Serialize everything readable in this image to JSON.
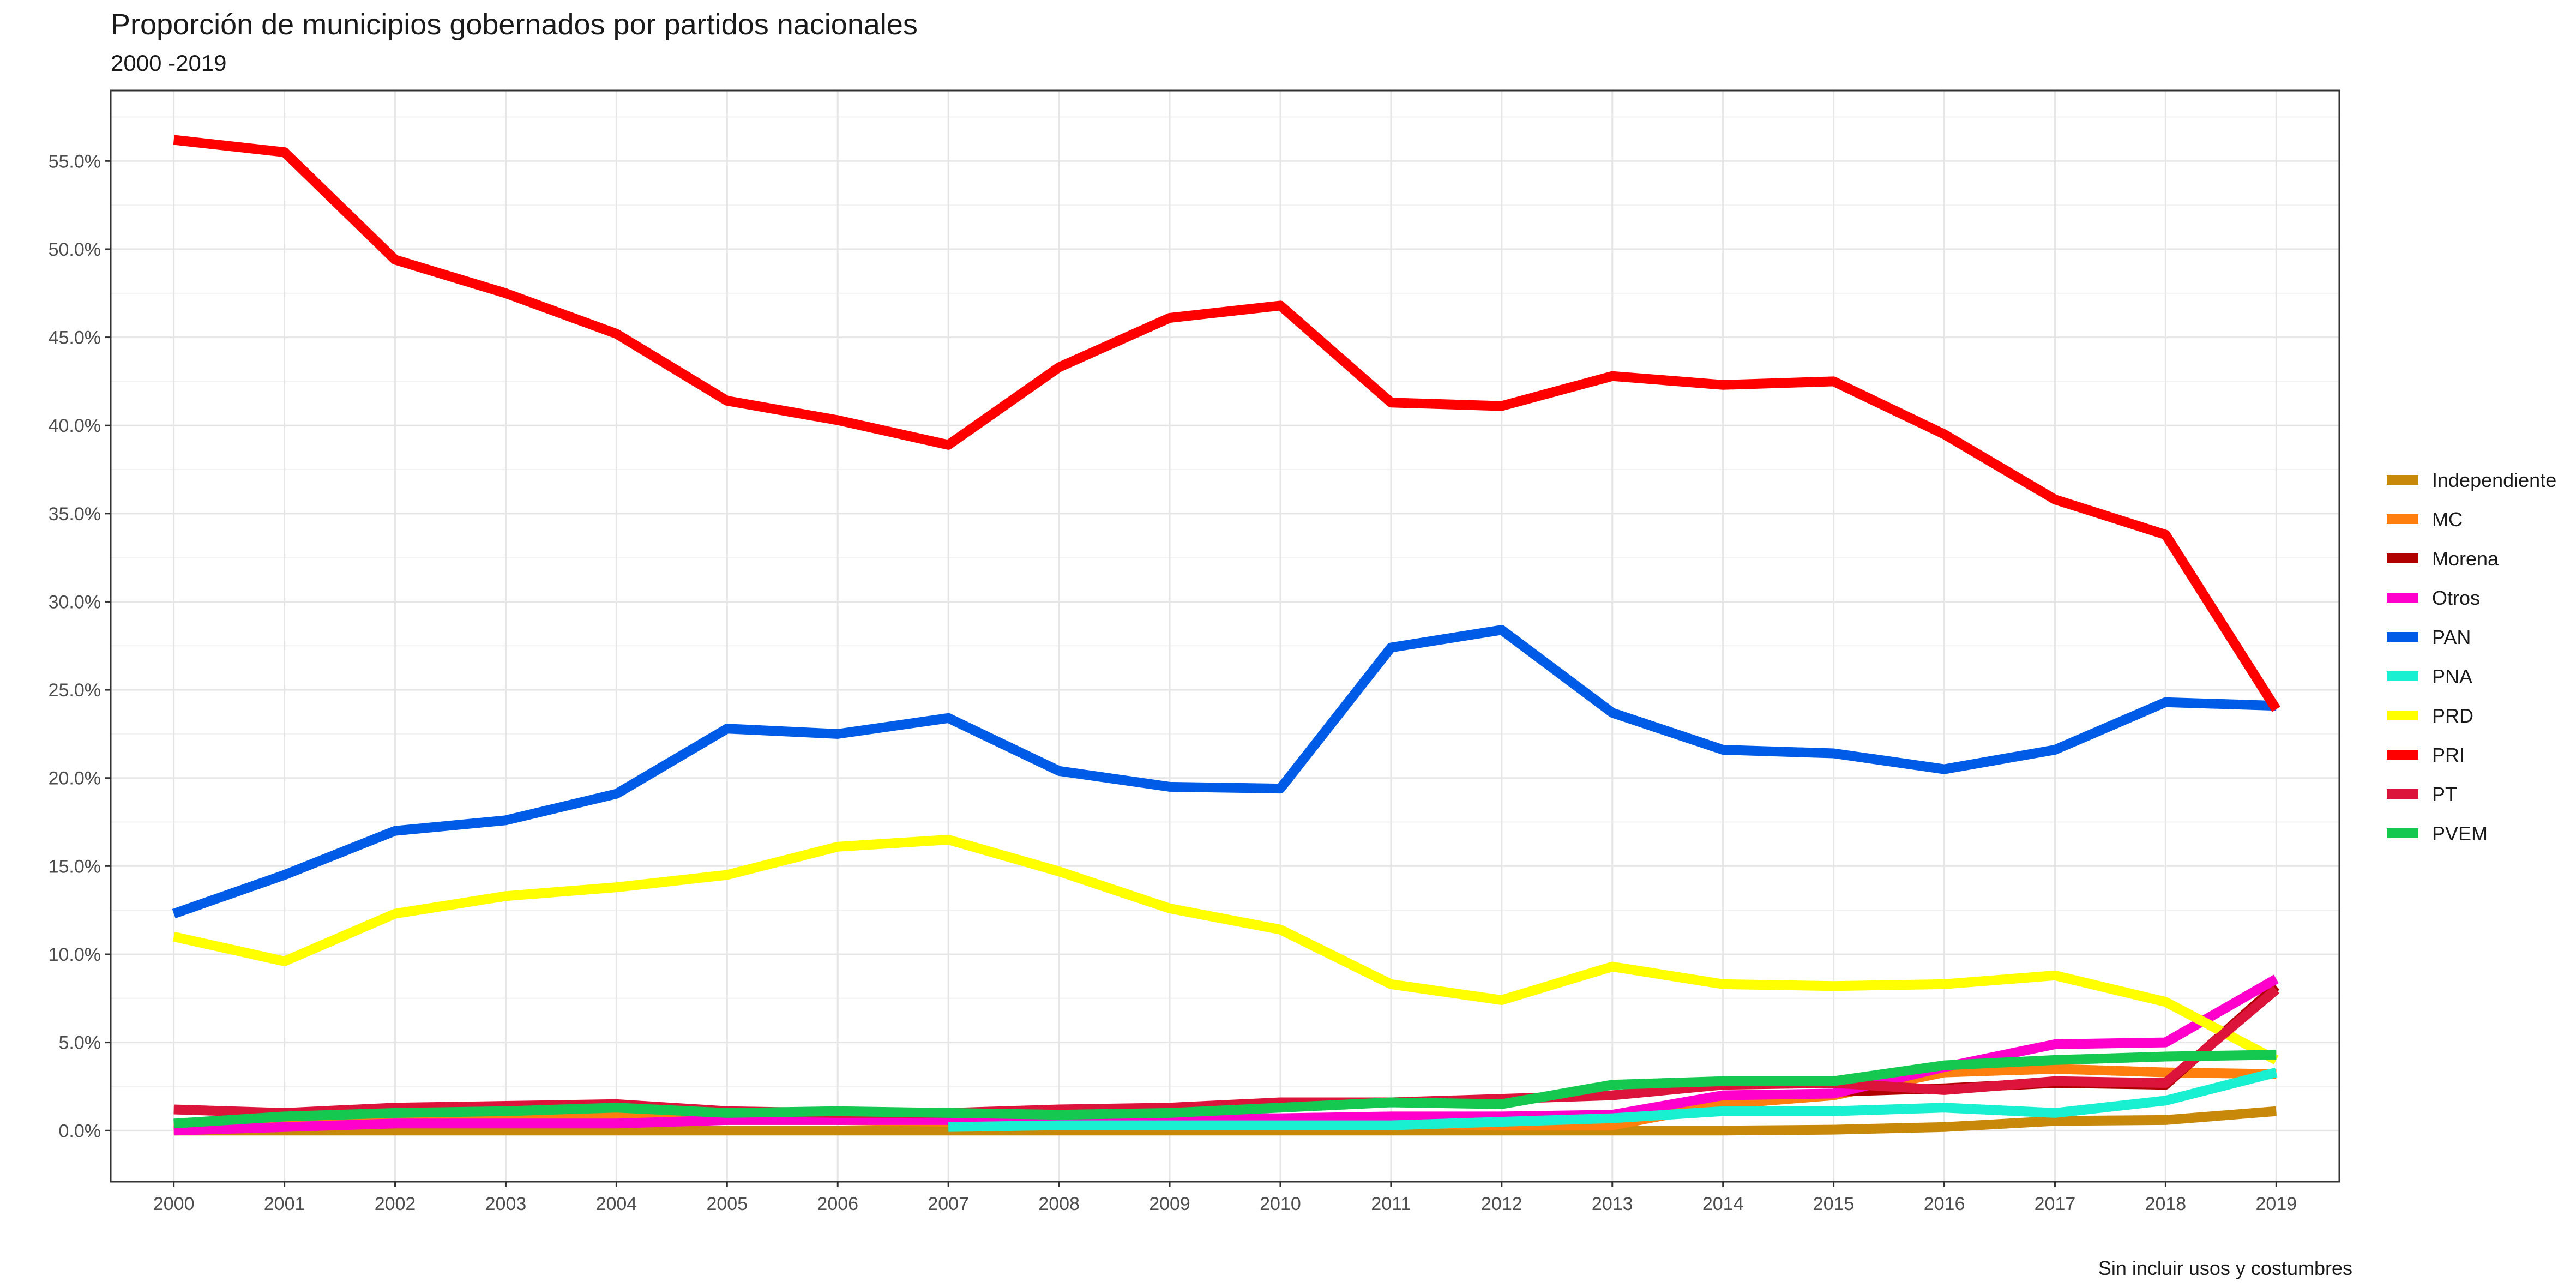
{
  "chart_data": {
    "type": "line",
    "title": "Proporción de municipios gobernados por partidos nacionales",
    "subtitle": "2000 -2019",
    "caption": "Sin incluir usos y costumbres",
    "xlabel": "",
    "ylabel": "",
    "x": [
      2000,
      2001,
      2002,
      2003,
      2004,
      2005,
      2006,
      2007,
      2008,
      2009,
      2010,
      2011,
      2012,
      2013,
      2014,
      2015,
      2016,
      2017,
      2018,
      2019
    ],
    "ylim": [
      -2.9,
      59.0
    ],
    "yticks": [
      0,
      5,
      10,
      15,
      20,
      25,
      30,
      35,
      40,
      45,
      50,
      55
    ],
    "ytick_labels": [
      "0.0%",
      "5.0%",
      "10.0%",
      "15.0%",
      "20.0%",
      "25.0%",
      "30.0%",
      "35.0%",
      "40.0%",
      "45.0%",
      "50.0%",
      "55.0%"
    ],
    "grid": true,
    "legend_position": "right",
    "series": [
      {
        "name": "Independiente",
        "color": "#c8880a",
        "values": [
          0,
          0,
          0,
          0,
          0,
          0,
          0,
          0,
          0,
          0,
          0,
          0,
          0,
          0,
          0,
          0.05,
          0.2,
          0.55,
          0.6,
          1.1
        ]
      },
      {
        "name": "MC",
        "color": "#ff7f0e",
        "values": [
          0.2,
          0.4,
          0.6,
          0.7,
          0.9,
          0.6,
          0.6,
          0.5,
          0.5,
          0.5,
          0.6,
          0.4,
          0.3,
          0.3,
          1.5,
          2.0,
          3.3,
          3.5,
          3.3,
          3.2
        ]
      },
      {
        "name": "Morena",
        "color": "#b00000",
        "values": [
          null,
          null,
          null,
          null,
          null,
          null,
          null,
          null,
          null,
          null,
          null,
          null,
          null,
          null,
          null,
          2.2,
          2.4,
          2.7,
          2.6,
          8.2
        ]
      },
      {
        "name": "Otros",
        "color": "#ff00cc",
        "values": [
          0,
          0.2,
          0.4,
          0.4,
          0.4,
          0.6,
          0.6,
          0.6,
          0.7,
          0.7,
          0.7,
          0.8,
          0.8,
          0.9,
          2.0,
          2.1,
          3.6,
          4.9,
          5.0,
          8.6
        ]
      },
      {
        "name": "PAN",
        "color": "#005be6",
        "values": [
          12.3,
          14.5,
          17.0,
          17.6,
          19.1,
          22.8,
          22.5,
          23.4,
          20.4,
          19.5,
          19.4,
          27.4,
          28.4,
          23.7,
          21.6,
          21.4,
          20.5,
          21.6,
          24.3,
          24.1
        ]
      },
      {
        "name": "PNA",
        "color": "#19f0d2",
        "values": [
          null,
          null,
          null,
          null,
          null,
          null,
          null,
          0.2,
          0.3,
          0.3,
          0.3,
          0.3,
          0.5,
          0.7,
          1.1,
          1.1,
          1.3,
          1.0,
          1.7,
          3.3
        ]
      },
      {
        "name": "PRD",
        "color": "#ffff00",
        "values": [
          11.0,
          9.6,
          12.3,
          13.3,
          13.8,
          14.5,
          16.1,
          16.5,
          14.7,
          12.6,
          11.4,
          8.3,
          7.4,
          9.3,
          8.3,
          8.2,
          8.3,
          8.8,
          7.3,
          4.0
        ]
      },
      {
        "name": "PRI",
        "color": "#ff0000",
        "values": [
          56.2,
          55.5,
          49.4,
          47.5,
          45.2,
          41.4,
          40.3,
          38.9,
          43.3,
          46.1,
          46.8,
          41.3,
          41.1,
          42.8,
          42.3,
          42.5,
          39.5,
          35.8,
          33.8,
          23.9
        ]
      },
      {
        "name": "PT",
        "color": "#dc143c",
        "values": [
          1.2,
          1.0,
          1.3,
          1.4,
          1.5,
          1.1,
          1.0,
          1.0,
          1.2,
          1.3,
          1.6,
          1.6,
          1.8,
          2.0,
          2.6,
          2.7,
          2.3,
          2.8,
          2.7,
          8.0
        ]
      },
      {
        "name": "PVEM",
        "color": "#14c850",
        "values": [
          0.4,
          0.8,
          1.0,
          1.1,
          1.3,
          1.0,
          1.1,
          1.0,
          0.9,
          1.0,
          1.3,
          1.6,
          1.5,
          2.6,
          2.8,
          2.8,
          3.7,
          4.0,
          4.2,
          4.3
        ]
      }
    ]
  }
}
